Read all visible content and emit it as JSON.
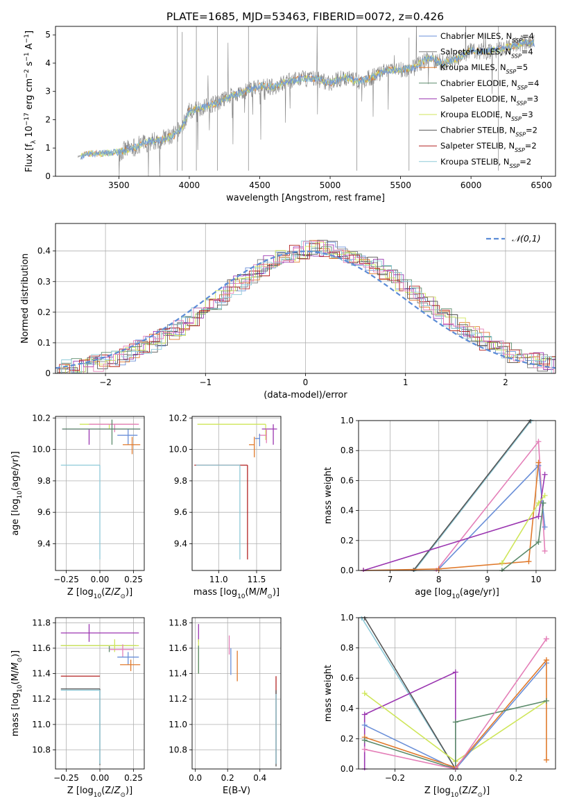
{
  "figure_title": "PLATE=1685, MJD=53463, FIBERID=0072, z=0.426",
  "colors": {
    "chabrier_miles": "#6a8fd8",
    "salpeter_miles": "#7f7f7f",
    "kroupa_miles": "#e07a2c",
    "chabrier_elodie": "#5a8a6a",
    "salpeter_elodie": "#9a35b0",
    "kroupa_elodie": "#cfe65a",
    "chabrier_stelib": "#555555",
    "salpeter_stelib": "#b22222",
    "kroupa_stelib": "#8ecad8",
    "pink": "#e47fb8",
    "data": "#7f7f7f",
    "gaussian": "#5b8bd6"
  },
  "chart_data": [
    {
      "id": "spectrum",
      "type": "line",
      "xlabel": "wavelength [Angstrom, rest frame]",
      "ylabel": "Flux [f_λ 10^-17 erg cm^-2 s^-1 A^-1]",
      "xlim": [
        3050,
        6600
      ],
      "ylim": [
        0,
        5.3
      ],
      "xticks": [
        3500,
        4000,
        4500,
        5000,
        5500,
        6000,
        6500
      ],
      "yticks": [
        0,
        1,
        2,
        3,
        4,
        5
      ],
      "grid": false,
      "legend_position": "right",
      "legend": [
        {
          "text": "Chabrier MILES, N",
          "sub": "SSP",
          "tail": "=4",
          "color": "#6a8fd8"
        },
        {
          "text": "Salpeter MILES, N",
          "sub": "SSP",
          "tail": "=4",
          "color": "#7f7f7f"
        },
        {
          "text": "Kroupa MILES, N",
          "sub": "SSP",
          "tail": "=5",
          "color": "#e07a2c"
        },
        {
          "text": "Chabrier ELODIE, N",
          "sub": "SSP",
          "tail": "=4",
          "color": "#5a8a6a"
        },
        {
          "text": "Salpeter ELODIE, N",
          "sub": "SSP",
          "tail": "=3",
          "color": "#9a35b0"
        },
        {
          "text": "Kroupa ELODIE, N",
          "sub": "SSP",
          "tail": "=3",
          "color": "#cfe65a"
        },
        {
          "text": "Chabrier STELIB, N",
          "sub": "SSP",
          "tail": "=2",
          "color": "#555555"
        },
        {
          "text": "Salpeter STELIB, N",
          "sub": "SSP",
          "tail": "=2",
          "color": "#b22222"
        },
        {
          "text": "Kroupa STELIB, N",
          "sub": "SSP",
          "tail": "=2",
          "color": "#8ecad8"
        }
      ],
      "continuum": {
        "x": [
          3210,
          3300,
          3400,
          3500,
          3600,
          3700,
          3800,
          3900,
          3950,
          4000,
          4100,
          4200,
          4300,
          4400,
          4500,
          4600,
          4700,
          4800,
          4900,
          5000,
          5100,
          5200,
          5300,
          5400,
          5500,
          5600,
          5700,
          5800,
          5900,
          6000,
          6100,
          6200,
          6300,
          6400,
          6450
        ],
        "y": [
          0.7,
          0.8,
          0.82,
          0.85,
          1.0,
          1.2,
          1.3,
          1.45,
          1.75,
          2.3,
          2.45,
          2.6,
          2.85,
          3.0,
          3.2,
          3.15,
          3.35,
          3.45,
          3.45,
          3.3,
          3.5,
          3.35,
          3.5,
          3.75,
          3.75,
          3.85,
          4.2,
          4.0,
          4.15,
          4.45,
          4.4,
          4.5,
          4.6,
          4.75,
          4.7
        ]
      }
    },
    {
      "id": "residuals",
      "type": "bar",
      "xlabel": "(data-model)/error",
      "ylabel": "Normed distribution",
      "xlim": [
        -2.5,
        2.5
      ],
      "ylim": [
        0,
        0.49
      ],
      "xticks": [
        -2,
        -1,
        0,
        1,
        2
      ],
      "yticks": [
        0.0,
        0.1,
        0.2,
        0.3,
        0.4
      ],
      "grid": true,
      "legend_position": "top-right",
      "legend": "𝒩(0,1)",
      "gaussian": {
        "mean": 0,
        "sigma": 1
      }
    },
    {
      "id": "age_vs_Z",
      "type": "scatter",
      "xlabel": "Z [log10(Z/Z⊙)]",
      "ylabel": "age  [log10(age/yr)]",
      "xlim": [
        -0.33,
        0.33
      ],
      "ylim": [
        9.23,
        10.21
      ],
      "xticks": [
        -0.25,
        0.0,
        0.25
      ],
      "xtick_labels": [
        "−0.25",
        "0.00",
        "0.25"
      ],
      "yticks": [
        9.4,
        9.6,
        9.8,
        10.0,
        10.2
      ],
      "ytick_labels": [
        "9.4",
        "9.6",
        "9.8",
        "10.0",
        "10.2"
      ],
      "grid": true,
      "errorbars": [
        {
          "x": 0.07,
          "xerr": [
            0.22,
            0.2
          ],
          "y": 10.16,
          "yerr": [
            0.03,
            0.0
          ],
          "color": "#cfe65a"
        },
        {
          "x": 0.11,
          "xerr": [
            0.19,
            0.18
          ],
          "y": 10.16,
          "yerr": [
            0.05,
            0.0
          ],
          "color": "#e47fb8"
        },
        {
          "x": 0.21,
          "xerr": [
            0.08,
            0.07
          ],
          "y": 10.09,
          "yerr": [
            0.06,
            0.04
          ],
          "color": "#6a8fd8"
        },
        {
          "x": 0.24,
          "xerr": [
            0.07,
            0.06
          ],
          "y": 10.03,
          "yerr": [
            0.06,
            0.05
          ],
          "color": "#e07a2c"
        },
        {
          "x": -0.08,
          "xerr": [
            0.2,
            0.38
          ],
          "y": 10.13,
          "yerr": [
            0.1,
            0.0
          ],
          "color": "#9a35b0"
        },
        {
          "x": 0.09,
          "xerr": [
            0.37,
            0.21
          ],
          "y": 10.13,
          "yerr": [
            0.1,
            0.06
          ],
          "color": "#5a8a6a"
        },
        {
          "x": 0.0,
          "xerr": [
            0.29,
            0.0
          ],
          "y": 9.9,
          "yerr": [
            0.6,
            0.0
          ],
          "color": "#8ecad8"
        }
      ]
    },
    {
      "id": "age_vs_mass",
      "type": "scatter",
      "xlabel": "mass [log10(M/M⊙)]",
      "ylabel": "",
      "xlim": [
        10.65,
        11.82
      ],
      "ylim": [
        9.23,
        10.21
      ],
      "xticks": [
        11.0,
        11.5
      ],
      "xtick_labels": [
        "11.0",
        "11.5"
      ],
      "yticks": [
        9.4,
        9.6,
        9.8,
        10.0,
        10.2
      ],
      "ytick_labels": [
        "9.4",
        "9.6",
        "9.8",
        "10.0",
        "10.2"
      ],
      "grid": true,
      "errorbars": [
        {
          "x": 11.62,
          "xerr": [
            0.9,
            0.0
          ],
          "y": 10.16,
          "yerr": [
            0.1,
            0.0
          ],
          "color": "#cfe65a"
        },
        {
          "x": 11.72,
          "xerr": [
            0.15,
            0.05
          ],
          "y": 10.13,
          "yerr": [
            0.1,
            0.03
          ],
          "color": "#9a35b0"
        },
        {
          "x": 11.63,
          "xerr": [
            0.1,
            0.0
          ],
          "y": 10.09,
          "yerr": [
            0.05,
            0.04
          ],
          "color": "#e47fb8"
        },
        {
          "x": 11.54,
          "xerr": [
            0.06,
            0.0
          ],
          "y": 10.07,
          "yerr": [
            0.05,
            0.03
          ],
          "color": "#6a8fd8"
        },
        {
          "x": 11.47,
          "xerr": [
            0.07,
            0.0
          ],
          "y": 10.03,
          "yerr": [
            0.08,
            0.05
          ],
          "color": "#e07a2c"
        },
        {
          "x": 11.38,
          "xerr": [
            0.7,
            0.0
          ],
          "y": 9.9,
          "yerr": [
            0.6,
            0.0
          ],
          "color": "#b22222"
        },
        {
          "x": 11.28,
          "xerr": [
            0.58,
            0.0
          ],
          "y": 9.9,
          "yerr": [
            0.6,
            0.0
          ],
          "color": "#8ecad8"
        }
      ]
    },
    {
      "id": "weight_vs_age",
      "type": "line",
      "xlabel": "age  [log10(age/yr)]",
      "ylabel": "mass weight",
      "xlim": [
        6.35,
        10.4
      ],
      "ylim": [
        0,
        1.0
      ],
      "xticks": [
        7,
        8,
        9,
        10
      ],
      "yticks": [
        0,
        0.2,
        0.4,
        0.6,
        0.8,
        1.0
      ],
      "ytick_labels": [
        "0.0",
        "0.2",
        "0.4",
        "0.6",
        "0.8",
        "1.0"
      ],
      "grid": true,
      "series": [
        {
          "color": "#8ecad8",
          "x": [
            7.5,
            9.9
          ],
          "y": [
            0.0,
            1.0
          ]
        },
        {
          "color": "#555555",
          "x": [
            7.48,
            9.88
          ],
          "y": [
            0.0,
            1.0
          ]
        },
        {
          "color": "#e47fb8",
          "x": [
            7.95,
            10.05,
            10.18
          ],
          "y": [
            0.0,
            0.86,
            0.13
          ]
        },
        {
          "color": "#6a8fd8",
          "x": [
            8.0,
            10.05,
            10.18
          ],
          "y": [
            0.01,
            0.7,
            0.29
          ]
        },
        {
          "color": "#e07a2c",
          "x": [
            6.45,
            8.0,
            9.85,
            10.05
          ],
          "y": [
            0.0,
            0.01,
            0.06,
            0.72
          ]
        },
        {
          "color": "#9a35b0",
          "x": [
            6.45,
            10.05,
            10.18
          ],
          "y": [
            0.0,
            0.36,
            0.64
          ]
        },
        {
          "color": "#cfe65a",
          "x": [
            9.3,
            10.05,
            10.18
          ],
          "y": [
            0.05,
            0.45,
            0.5
          ]
        },
        {
          "color": "#5a8a6a",
          "x": [
            9.3,
            10.05,
            10.15
          ],
          "y": [
            0.0,
            0.19,
            0.45
          ]
        }
      ]
    },
    {
      "id": "mass_vs_Z",
      "type": "scatter",
      "xlabel": "Z [log10(Z/Z⊙)]",
      "ylabel": "mass [log10(M/M⊙)]",
      "xlim": [
        -0.33,
        0.33
      ],
      "ylim": [
        10.65,
        11.84
      ],
      "xticks": [
        -0.25,
        0.0,
        0.25
      ],
      "xtick_labels": [
        "−0.25",
        "0.00",
        "0.25"
      ],
      "yticks": [
        10.8,
        11.0,
        11.2,
        11.4,
        11.6,
        11.8
      ],
      "ytick_labels": [
        "10.8",
        "11.0",
        "11.2",
        "11.4",
        "11.6",
        "11.8"
      ],
      "grid": true,
      "errorbars": [
        {
          "x": -0.08,
          "xerr": [
            0.21,
            0.37
          ],
          "y": 11.72,
          "yerr": [
            0.07,
            0.07
          ],
          "color": "#9a35b0"
        },
        {
          "x": 0.07,
          "xerr": [
            0.36,
            0.2
          ],
          "y": 11.62,
          "yerr": [
            0.05,
            0.0
          ],
          "color": "#5a8a6a"
        },
        {
          "x": 0.11,
          "xerr": [
            0.4,
            0.18
          ],
          "y": 11.62,
          "yerr": [
            0.05,
            0.05
          ],
          "color": "#cfe65a"
        },
        {
          "x": 0.17,
          "xerr": [
            0.1,
            0.08
          ],
          "y": 11.59,
          "yerr": [
            0.06,
            0.04
          ],
          "color": "#e47fb8"
        },
        {
          "x": 0.21,
          "xerr": [
            0.08,
            0.08
          ],
          "y": 11.53,
          "yerr": [
            0.06,
            0.04
          ],
          "color": "#6a8fd8"
        },
        {
          "x": 0.23,
          "xerr": [
            0.08,
            0.07
          ],
          "y": 11.47,
          "yerr": [
            0.05,
            0.04
          ],
          "color": "#e07a2c"
        },
        {
          "x": 0.0,
          "xerr": [
            0.29,
            0.0
          ],
          "y": 11.38,
          "yerr": [
            0.0,
            0.0
          ],
          "color": "#b22222"
        },
        {
          "x": 0.0,
          "xerr": [
            0.29,
            0.0
          ],
          "y": 11.28,
          "yerr": [
            0.6,
            0.0
          ],
          "color": "#555555"
        },
        {
          "x": 0.0,
          "xerr": [
            0.29,
            0.0
          ],
          "y": 11.27,
          "yerr": [
            0.58,
            0.0
          ],
          "color": "#8ecad8"
        }
      ]
    },
    {
      "id": "mass_vs_ebv",
      "type": "scatter",
      "xlabel": "E(B-V)",
      "ylabel": "",
      "xlim": [
        -0.02,
        0.53
      ],
      "ylim": [
        10.65,
        11.84
      ],
      "xticks": [
        0.0,
        0.2,
        0.4
      ],
      "xtick_labels": [
        "0.0",
        "0.2",
        "0.4"
      ],
      "yticks": [
        10.8,
        11.0,
        11.2,
        11.4,
        11.6,
        11.8
      ],
      "ytick_labels": [
        "10.8",
        "11.0",
        "11.2",
        "11.4",
        "11.6",
        "11.8"
      ],
      "grid": true,
      "errorbars": [
        {
          "x": 0.02,
          "y": 11.72,
          "yerr": [
            0.07,
            0.07
          ],
          "color": "#9a35b0"
        },
        {
          "x": 0.02,
          "y": 11.55,
          "yerr": [
            0.15,
            0.12
          ],
          "color": "#cfe65a"
        },
        {
          "x": 0.02,
          "y": 11.52,
          "yerr": [
            0.12,
            0.1
          ],
          "color": "#5a8a6a"
        },
        {
          "x": 0.21,
          "y": 11.63,
          "yerr": [
            0.08,
            0.07
          ],
          "color": "#e47fb8"
        },
        {
          "x": 0.22,
          "y": 11.5,
          "yerr": [
            0.11,
            0.1
          ],
          "color": "#6a8fd8"
        },
        {
          "x": 0.26,
          "y": 11.46,
          "yerr": [
            0.12,
            0.12
          ],
          "color": "#e07a2c"
        },
        {
          "x": 0.5,
          "y": 11.04,
          "yerr": [
            0.35,
            0.34
          ],
          "color": "#b22222"
        },
        {
          "x": 0.5,
          "y": 11.02,
          "yerr": [
            0.35,
            0.25
          ],
          "color": "#555555"
        },
        {
          "x": 0.5,
          "y": 10.99,
          "yerr": [
            0.3,
            0.25
          ],
          "color": "#8ecad8"
        }
      ]
    },
    {
      "id": "weight_vs_Z",
      "type": "line",
      "xlabel": "Z [log10(Z/Z⊙)]",
      "ylabel": "mass weight",
      "xlim": [
        -0.32,
        0.33
      ],
      "ylim": [
        0,
        1.0
      ],
      "xticks": [
        -0.2,
        0.0,
        0.2
      ],
      "xtick_labels": [
        "−0.2",
        "0.0",
        "0.2"
      ],
      "yticks": [
        0,
        0.2,
        0.4,
        0.6,
        0.8,
        1.0
      ],
      "ytick_labels": [
        "0.0",
        "0.2",
        "0.4",
        "0.6",
        "0.8",
        "1.0"
      ],
      "grid": true,
      "series": [
        {
          "color": "#8ecad8",
          "x": [
            -0.31,
            0.0
          ],
          "y": [
            1.0,
            0.0
          ]
        },
        {
          "color": "#555555",
          "x": [
            -0.3,
            0.0
          ],
          "y": [
            1.0,
            0.0
          ]
        },
        {
          "color": "#9a35b0",
          "x": [
            -0.3,
            -0.3,
            0.0,
            0.0
          ],
          "y": [
            0.0,
            0.36,
            0.64,
            0.0
          ]
        },
        {
          "color": "#cfe65a",
          "x": [
            -0.3,
            0.0,
            0.3
          ],
          "y": [
            0.5,
            0.05,
            0.45
          ]
        },
        {
          "color": "#6a8fd8",
          "x": [
            -0.3,
            0.0,
            0.3
          ],
          "y": [
            0.29,
            0.0,
            0.7
          ]
        },
        {
          "color": "#e07a2c",
          "x": [
            -0.3,
            0.0,
            0.3,
            0.3
          ],
          "y": [
            0.21,
            0.01,
            0.72,
            0.06
          ]
        },
        {
          "color": "#5a8a6a",
          "x": [
            -0.3,
            0.0,
            0.0,
            0.3
          ],
          "y": [
            0.19,
            0.0,
            0.31,
            0.45
          ]
        },
        {
          "color": "#e47fb8",
          "x": [
            -0.3,
            0.0,
            0.3,
            0.3
          ],
          "y": [
            0.13,
            0.0,
            0.86,
            0.86
          ]
        }
      ]
    }
  ]
}
